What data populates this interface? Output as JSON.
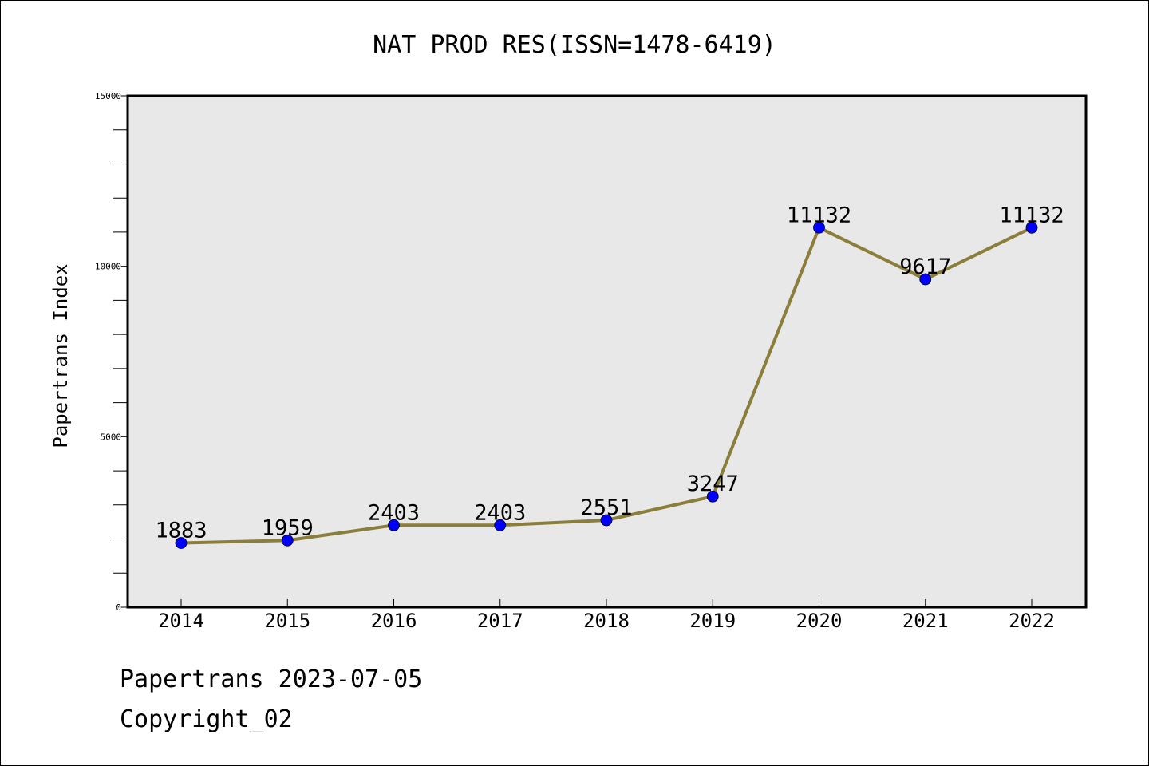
{
  "chart_data": {
    "type": "line",
    "title": "NAT PROD RES(ISSN=1478-6419)",
    "xlabel": "",
    "ylabel": "Papertrans Index",
    "categories": [
      "2014",
      "2015",
      "2016",
      "2017",
      "2018",
      "2019",
      "2020",
      "2021",
      "2022"
    ],
    "series": [
      {
        "values": [
          1883,
          1959,
          2403,
          2403,
          2551,
          3247,
          11132,
          9617,
          11132
        ]
      }
    ],
    "ylim": [
      0,
      15000
    ],
    "yticks": [
      0,
      5000,
      10000,
      15000
    ],
    "yticklabels": [
      "0",
      "5000",
      "10000",
      "15000"
    ],
    "grid": false,
    "legend": "none",
    "colors": {
      "line": "#8b7d3a",
      "marker": "#0000ff",
      "plot_background": "#e8e8e8"
    }
  },
  "footer": {
    "line1": "Papertrans 2023-07-05",
    "line2": "Copyright_02"
  }
}
